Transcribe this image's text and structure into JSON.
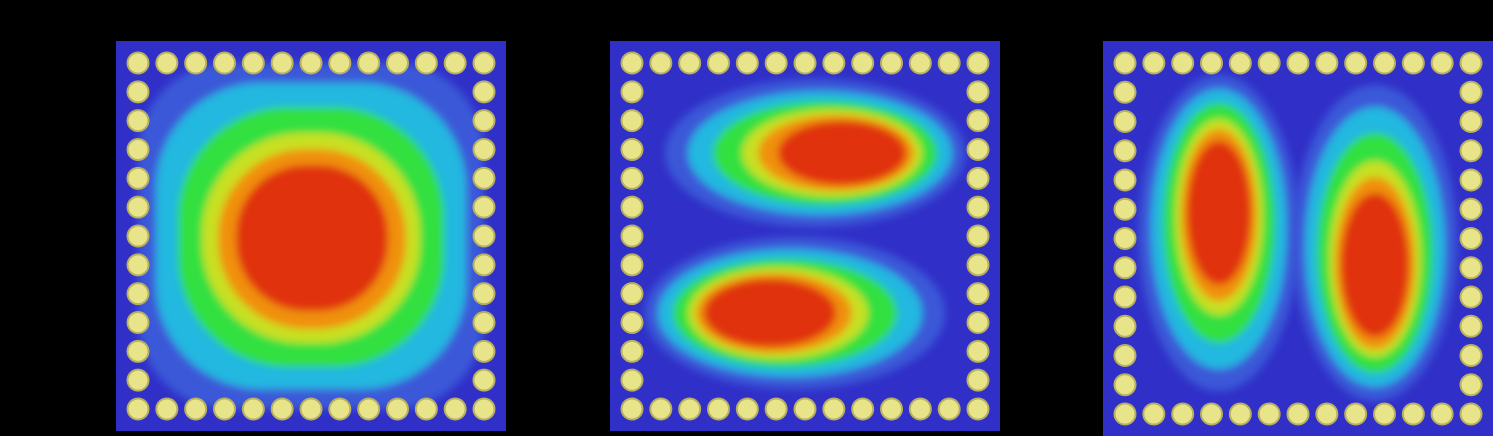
{
  "colors": {
    "background": "#000000",
    "field_low": "#3030c8",
    "field_cyan": "#20c8e0",
    "field_green": "#30e040",
    "field_yellow": "#e8d820",
    "field_orange": "#f08010",
    "field_high": "#e03010",
    "via": "#e8e48a",
    "via_ring": "#b8b060"
  },
  "panels": [
    {
      "mode": "single-lobe",
      "lobes": 1
    },
    {
      "mode": "two-lobe-horizontal",
      "lobes": 2
    },
    {
      "mode": "two-lobe-vertical",
      "lobes": 2
    }
  ]
}
